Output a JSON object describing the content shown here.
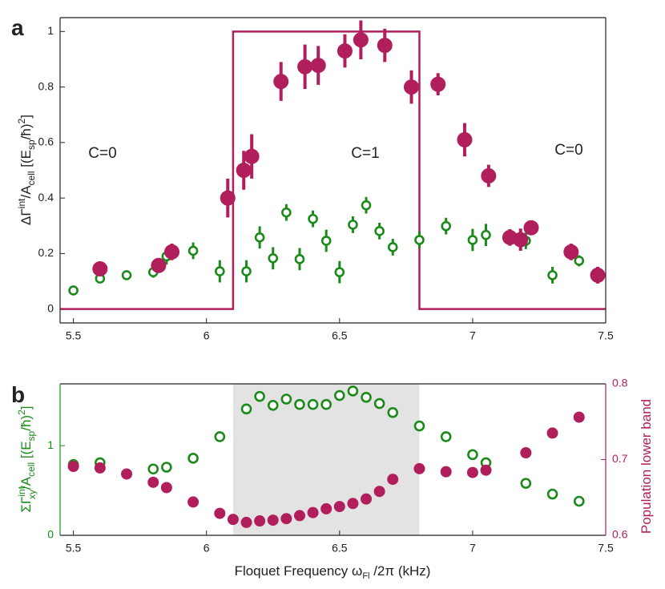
{
  "chart_data": [
    {
      "type": "scatter",
      "panel_label": "a",
      "ylabel": [
        "ΔΓ",
        "int",
        "/A",
        "cell",
        "  [(E",
        "sp",
        "/ħ)",
        "2",
        "]"
      ],
      "annotations": [
        "C=0",
        "C=1",
        "C=0"
      ],
      "xlim": [
        5.45,
        7.5
      ],
      "xticks": [
        5.5,
        6,
        6.5,
        7,
        7.5
      ],
      "ylim": [
        -0.05,
        1.05
      ],
      "yticks": [
        0,
        0.2,
        0.4,
        0.6,
        0.8,
        1
      ],
      "series": [
        {
          "color": "#b01e5c",
          "style": "step-line",
          "x": [
            5.45,
            6.1,
            6.1,
            6.8,
            6.8,
            7.5
          ],
          "values": [
            0,
            0,
            1,
            1,
            0,
            0
          ]
        },
        {
          "color": "#1b8a1b",
          "marker": "open",
          "x": [
            5.5,
            5.6,
            5.7,
            5.8,
            5.85,
            5.95,
            6.05,
            6.15,
            6.2,
            6.25,
            6.3,
            6.35,
            6.4,
            6.45,
            6.5,
            6.55,
            6.6,
            6.65,
            6.7,
            6.8,
            6.9,
            7.0,
            7.05,
            7.2,
            7.3,
            7.4
          ],
          "values": [
            0.067,
            0.11,
            0.122,
            0.133,
            0.19,
            0.21,
            0.136,
            0.136,
            0.258,
            0.183,
            0.348,
            0.18,
            0.325,
            0.246,
            0.133,
            0.304,
            0.374,
            0.281,
            0.223,
            0.249,
            0.299,
            0.249,
            0.267,
            0.246,
            0.122,
            0.174
          ],
          "errors": [
            0.015,
            0.015,
            0.015,
            0.02,
            0.03,
            0.03,
            0.04,
            0.04,
            0.04,
            0.04,
            0.03,
            0.04,
            0.03,
            0.04,
            0.04,
            0.03,
            0.03,
            0.03,
            0.03,
            0.03,
            0.03,
            0.04,
            0.04,
            0.03,
            0.03,
            0.02
          ]
        },
        {
          "color": "#b01e5c",
          "marker": "filled",
          "x": [
            5.6,
            5.82,
            5.87,
            6.08,
            6.14,
            6.17,
            6.28,
            6.37,
            6.42,
            6.52,
            6.58,
            6.67,
            6.77,
            6.87,
            6.97,
            7.06,
            7.14,
            7.18,
            7.22,
            7.37,
            7.47
          ],
          "values": [
            0.145,
            0.157,
            0.206,
            0.4,
            0.5,
            0.55,
            0.82,
            0.873,
            0.878,
            0.93,
            0.97,
            0.95,
            0.8,
            0.81,
            0.61,
            0.48,
            0.258,
            0.25,
            0.293,
            0.206,
            0.122
          ],
          "errors": [
            0.01,
            0.015,
            0.03,
            0.07,
            0.07,
            0.08,
            0.07,
            0.08,
            0.07,
            0.06,
            0.07,
            0.06,
            0.06,
            0.04,
            0.06,
            0.04,
            0.03,
            0.04,
            0.02,
            0.03,
            0.03
          ]
        }
      ]
    },
    {
      "type": "scatter",
      "panel_label": "b",
      "xlabel": [
        "Floquet Frequency ω",
        "Fl",
        " /2π  (kHz)"
      ],
      "ylabel": [
        "ΣΓ",
        "int",
        "xy",
        "/A",
        "cell",
        "  [(E",
        "sp",
        "/ħ)",
        "2",
        "]"
      ],
      "y2label": "Population lower band",
      "shade": [
        6.1,
        6.8
      ],
      "shade_color": "#e3e3e3",
      "xlim": [
        5.45,
        7.5
      ],
      "xticks": [
        5.5,
        6,
        6.5,
        7,
        7.5
      ],
      "ylim": [
        0,
        1.69
      ],
      "yticks": [
        0,
        1
      ],
      "y2lim": [
        0.6,
        0.8
      ],
      "y2ticks": [
        0.6,
        0.7,
        0.8
      ],
      "series": [
        {
          "color": "#1b8a1b",
          "marker": "open",
          "x": [
            5.5,
            5.6,
            5.8,
            5.85,
            5.95,
            6.05,
            6.15,
            6.2,
            6.25,
            6.3,
            6.35,
            6.4,
            6.45,
            6.5,
            6.55,
            6.6,
            6.65,
            6.7,
            6.8,
            6.9,
            7.0,
            7.05,
            7.2,
            7.3,
            7.4
          ],
          "values": [
            0.79,
            0.81,
            0.74,
            0.76,
            0.86,
            1.1,
            1.41,
            1.55,
            1.45,
            1.52,
            1.46,
            1.46,
            1.46,
            1.56,
            1.61,
            1.54,
            1.47,
            1.37,
            1.22,
            1.1,
            0.9,
            0.81,
            0.58,
            0.46,
            0.38
          ]
        },
        {
          "color": "#b01e5c",
          "marker": "filled",
          "axis": "y2",
          "x": [
            5.5,
            5.6,
            5.7,
            5.8,
            5.85,
            5.95,
            6.05,
            6.1,
            6.15,
            6.2,
            6.25,
            6.3,
            6.35,
            6.4,
            6.45,
            6.5,
            6.55,
            6.6,
            6.65,
            6.7,
            6.8,
            6.9,
            7.0,
            7.05,
            7.2,
            7.3,
            7.4
          ],
          "values": [
            0.691,
            0.689,
            0.681,
            0.67,
            0.663,
            0.644,
            0.629,
            0.621,
            0.617,
            0.619,
            0.62,
            0.622,
            0.626,
            0.63,
            0.635,
            0.638,
            0.642,
            0.648,
            0.658,
            0.674,
            0.688,
            0.684,
            0.683,
            0.686,
            0.709,
            0.735,
            0.756
          ]
        }
      ]
    }
  ]
}
